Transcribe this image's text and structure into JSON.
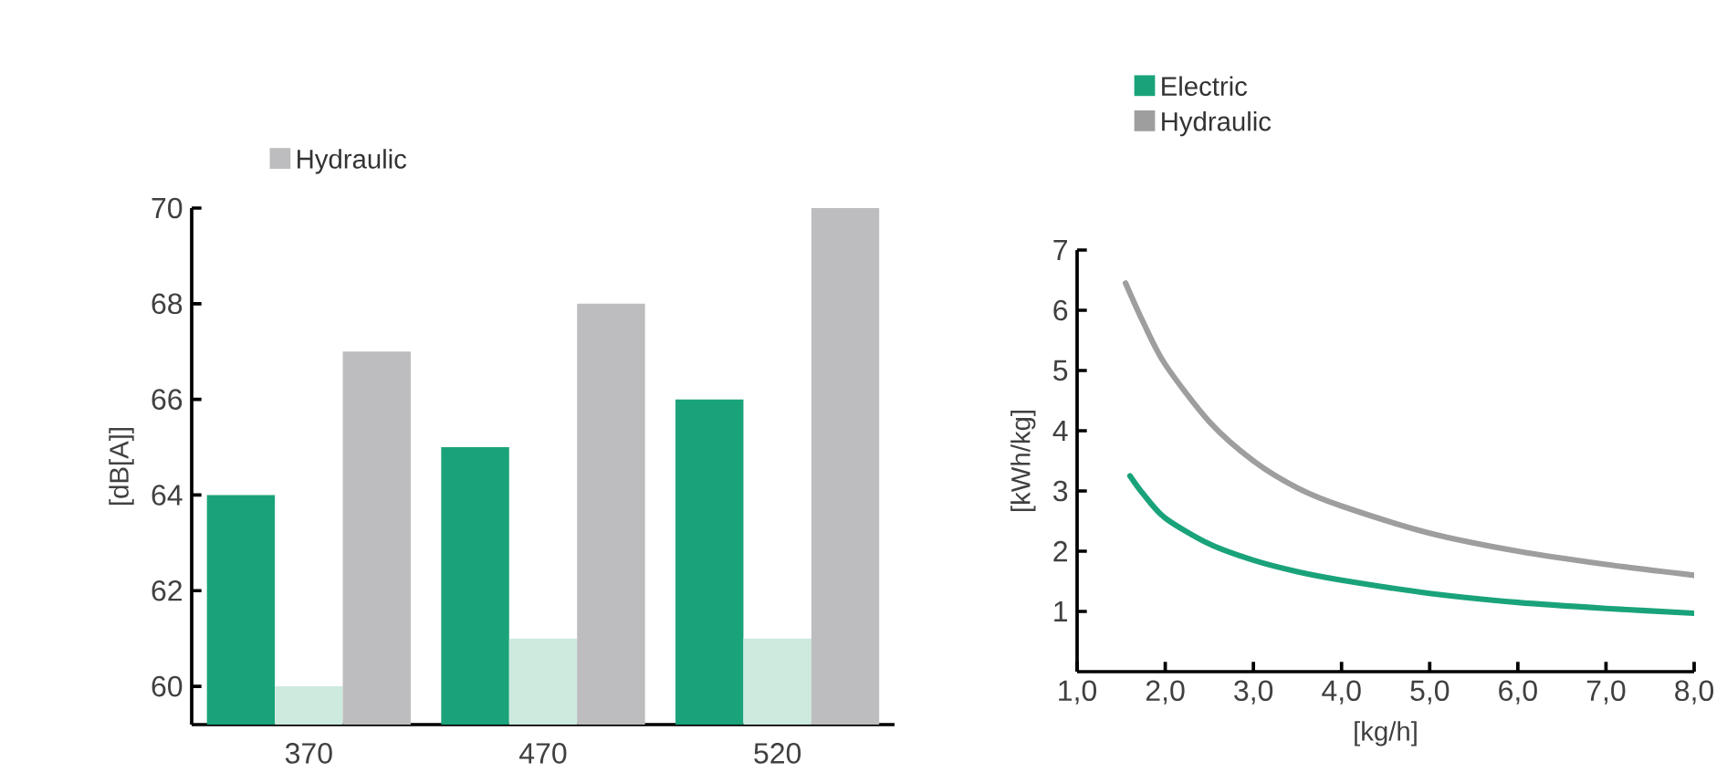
{
  "chart_data": [
    {
      "type": "bar",
      "categories": [
        "370",
        "470",
        "520"
      ],
      "ylabel": "[dB[A]]",
      "ylim": [
        59.2,
        70
      ],
      "yticks": [
        60,
        62,
        64,
        66,
        68,
        70
      ],
      "legend": "top left",
      "series": [
        {
          "color": "#1aa37a",
          "values": [
            64,
            65,
            66
          ]
        },
        {
          "color": "#cdeadf",
          "values": [
            60,
            61,
            61
          ]
        },
        {
          "name": "Hydraulic",
          "color": "#bdbdbf",
          "values": [
            67,
            68,
            70
          ]
        }
      ]
    },
    {
      "type": "line",
      "xlabel": "[kg/h]",
      "ylabel": "[kWh/kg]",
      "xlim": [
        1,
        8
      ],
      "ylim": [
        0,
        7
      ],
      "legend": "top left",
      "xticks": [
        {
          "value": 1,
          "label": "1,0"
        },
        {
          "value": 2,
          "label": "2,0"
        },
        {
          "value": 3,
          "label": "3,0"
        },
        {
          "value": 4,
          "label": "4,0"
        },
        {
          "value": 5,
          "label": "5,0"
        },
        {
          "value": 6,
          "label": "6,0"
        },
        {
          "value": 7,
          "label": "7,0"
        },
        {
          "value": 8,
          "label": "8,0"
        }
      ],
      "yticks": [
        1,
        2,
        3,
        4,
        5,
        6,
        7
      ],
      "series": [
        {
          "name": "Electric",
          "color": "#1aa37a",
          "x": [
            1.6,
            1.75,
            2,
            2.5,
            3,
            3.5,
            4,
            5,
            6,
            7,
            8
          ],
          "values": [
            3.25,
            2.95,
            2.55,
            2.12,
            1.85,
            1.66,
            1.52,
            1.3,
            1.15,
            1.05,
            0.97
          ]
        },
        {
          "name": "Hydraulic",
          "color": "#9e9e9e",
          "x": [
            1.55,
            1.75,
            2,
            2.5,
            3,
            3.5,
            4,
            5,
            6,
            7,
            8
          ],
          "values": [
            6.45,
            5.8,
            5.1,
            4.15,
            3.5,
            3.05,
            2.75,
            2.3,
            2.0,
            1.78,
            1.6
          ]
        }
      ]
    }
  ]
}
